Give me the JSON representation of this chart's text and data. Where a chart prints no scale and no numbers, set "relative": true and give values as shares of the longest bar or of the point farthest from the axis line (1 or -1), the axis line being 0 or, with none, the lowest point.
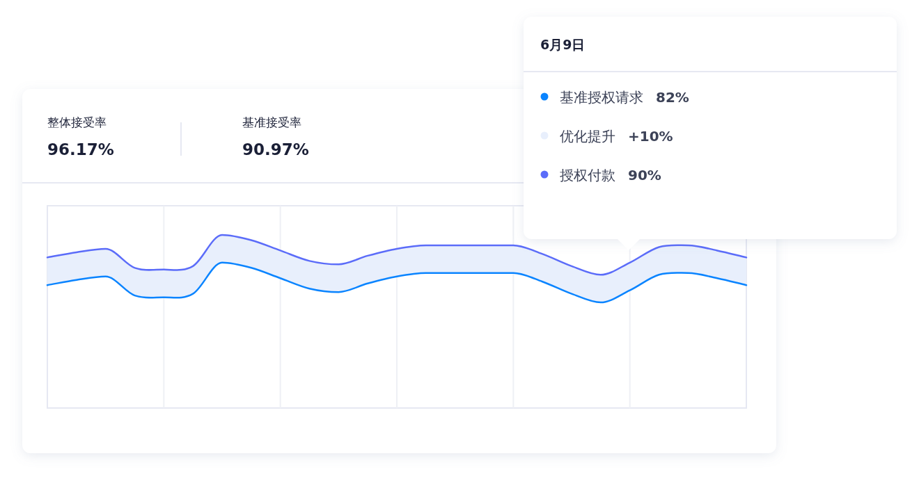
{
  "chart_data": {
    "type": "line",
    "relative": true,
    "grid": "x",
    "legend": "top right",
    "marker": "none",
    "line_style": "solid",
    "categories": [
      null,
      null,
      null,
      null,
      null,
      null,
      null,
      null,
      null,
      null,
      null,
      null,
      null,
      null,
      null,
      null,
      null,
      null,
      null,
      null,
      null,
      null,
      null,
      null,
      null
    ],
    "series": [
      {
        "name": "基准授权请求",
        "color": "#0a84ff",
        "values": [
          0.71,
          0.74,
          0.76,
          0.65,
          0.64,
          0.66,
          0.84,
          0.81,
          0.75,
          0.69,
          0.67,
          0.72,
          0.76,
          0.78,
          0.78,
          0.78,
          0.78,
          0.73,
          0.66,
          0.61,
          0.68,
          0.77,
          0.78,
          0.75,
          0.71
        ]
      },
      {
        "name": "优化提升",
        "type": "area",
        "color": "#e8effc",
        "values": [
          null,
          null,
          null,
          null,
          null,
          null,
          null,
          null,
          null,
          null,
          null,
          null,
          null,
          null,
          null,
          null,
          null,
          null,
          null,
          null,
          null,
          null,
          null,
          null,
          null
        ],
        "lower": [
          0.71,
          0.74,
          0.76,
          0.65,
          0.64,
          0.66,
          0.84,
          0.81,
          0.75,
          0.69,
          0.67,
          0.72,
          0.76,
          0.78,
          0.78,
          0.78,
          0.78,
          0.73,
          0.66,
          0.61,
          0.68,
          0.77,
          0.78,
          0.75,
          0.71
        ],
        "upper": [
          0.87,
          0.9,
          0.92,
          0.81,
          0.8,
          0.82,
          1.0,
          0.97,
          0.91,
          0.85,
          0.83,
          0.88,
          0.92,
          0.94,
          0.94,
          0.94,
          0.94,
          0.89,
          0.82,
          0.77,
          0.84,
          0.93,
          0.94,
          0.91,
          0.87
        ]
      },
      {
        "name": "授权付款",
        "color": "#5b6cf9",
        "values": [
          0.87,
          0.9,
          0.92,
          0.81,
          0.8,
          0.82,
          1.0,
          0.97,
          0.91,
          0.85,
          0.83,
          0.88,
          0.92,
          0.94,
          0.94,
          0.94,
          0.94,
          0.89,
          0.82,
          0.77,
          0.84,
          0.93,
          0.94,
          0.91,
          0.87
        ]
      }
    ],
    "annotations": [
      "整体接受率",
      "96.17%",
      "基准接受率",
      "90.97%",
      "6月9日",
      "82%",
      "+10%",
      "90%"
    ]
  }
}
